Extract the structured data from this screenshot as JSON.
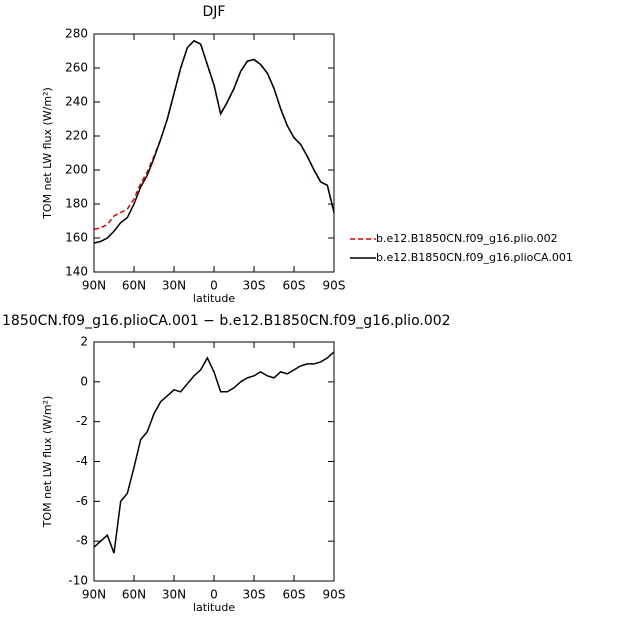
{
  "chart_data": [
    {
      "type": "line",
      "title": "DJF",
      "x_label": "latitude",
      "y_label": "TOM net LW flux (W/m²)",
      "x": [
        90,
        85,
        80,
        75,
        70,
        65,
        60,
        55,
        50,
        45,
        40,
        35,
        30,
        25,
        20,
        15,
        10,
        5,
        0,
        -5,
        -10,
        -15,
        -20,
        -25,
        -30,
        -35,
        -40,
        -45,
        -50,
        -55,
        -60,
        -65,
        -70,
        -75,
        -80,
        -85,
        -90
      ],
      "xlim": [
        90,
        -90
      ],
      "xticks": [
        {
          "value": 90,
          "label": "90N"
        },
        {
          "value": 60,
          "label": "60N"
        },
        {
          "value": 30,
          "label": "30N"
        },
        0,
        {
          "value": -30,
          "label": "30S"
        },
        {
          "value": -60,
          "label": "60S"
        },
        {
          "value": -90,
          "label": "90S"
        }
      ],
      "ylim": [
        140,
        280
      ],
      "yticks": [
        140,
        160,
        180,
        200,
        220,
        240,
        260,
        280
      ],
      "legend": "right",
      "series": [
        {
          "name": "b.e12.B1850CN.f09_g16.plio.002",
          "color": "#e00000",
          "dashed": true,
          "values": [
            165,
            166,
            168,
            173,
            175,
            177,
            183,
            192,
            199,
            208,
            218,
            230,
            245,
            260,
            272,
            276,
            274,
            262,
            250,
            233,
            240,
            248,
            258,
            264,
            265,
            262,
            257,
            248,
            236,
            226,
            219,
            215,
            208,
            200,
            193,
            191,
            175
          ]
        },
        {
          "name": "b.e12.B1850CN.f09_g16.plioCA.001",
          "color": "#000000",
          "dashed": false,
          "values": [
            157,
            158,
            160,
            164,
            169,
            172,
            180,
            190,
            197,
            207,
            218,
            230,
            245,
            260,
            272,
            276,
            274,
            262,
            250,
            233,
            240,
            248,
            258,
            264,
            265,
            262,
            257,
            248,
            236,
            226,
            219,
            215,
            208,
            200,
            193,
            191,
            175
          ]
        }
      ]
    },
    {
      "type": "line",
      "title": "1850CN.f09_g16.plioCA.001 − b.e12.B1850CN.f09_g16.plio.002",
      "x_label": "latitude",
      "y_label": "TOM net LW flux (W/m²)",
      "x": [
        90,
        85,
        80,
        75,
        70,
        65,
        60,
        55,
        50,
        45,
        40,
        35,
        30,
        25,
        20,
        15,
        10,
        5,
        0,
        -5,
        -10,
        -15,
        -20,
        -25,
        -30,
        -35,
        -40,
        -45,
        -50,
        -55,
        -60,
        -65,
        -70,
        -75,
        -80,
        -85,
        -90
      ],
      "xlim": [
        90,
        -90
      ],
      "xticks": [
        {
          "value": 90,
          "label": "90N"
        },
        {
          "value": 60,
          "label": "60N"
        },
        {
          "value": 30,
          "label": "30N"
        },
        0,
        {
          "value": -30,
          "label": "30S"
        },
        {
          "value": -60,
          "label": "60S"
        },
        {
          "value": -90,
          "label": "90S"
        }
      ],
      "ylim": [
        -10,
        2
      ],
      "yticks": [
        -10,
        -8,
        -6,
        -4,
        -2,
        0,
        2
      ],
      "series": [
        {
          "color": "#000000",
          "dashed": false,
          "values": [
            -8.3,
            -8.0,
            -7.7,
            -8.6,
            -6.0,
            -5.6,
            -4.3,
            -2.9,
            -2.5,
            -1.6,
            -1.0,
            -0.7,
            -0.4,
            -0.5,
            -0.1,
            0.3,
            0.6,
            1.2,
            0.5,
            -0.5,
            -0.5,
            -0.3,
            0,
            0.2,
            0.3,
            0.5,
            0.3,
            0.2,
            0.5,
            0.4,
            0.6,
            0.8,
            0.9,
            0.9,
            1.0,
            1.2,
            1.5
          ]
        }
      ]
    }
  ]
}
